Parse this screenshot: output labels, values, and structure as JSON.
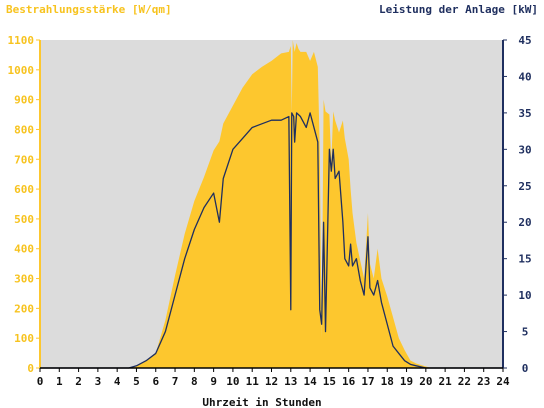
{
  "chart_data": {
    "type": "area",
    "title_left": "Bestrahlungsstärke [W/qm]",
    "title_right": "Leistung der Anlage [kW]",
    "xlabel": "Uhrzeit in Stunden",
    "grid": false,
    "xlim": [
      0,
      24
    ],
    "ylim_left": [
      0,
      1100
    ],
    "ylim_right": [
      0,
      45
    ],
    "x_ticks": [
      0,
      1,
      2,
      3,
      4,
      5,
      6,
      7,
      8,
      9,
      10,
      11,
      12,
      13,
      14,
      15,
      16,
      17,
      18,
      19,
      20,
      21,
      22,
      23,
      24
    ],
    "y_ticks_left": [
      0,
      100,
      200,
      300,
      400,
      500,
      600,
      700,
      800,
      900,
      1000,
      1100
    ],
    "y_ticks_right": [
      0,
      5,
      10,
      15,
      20,
      25,
      30,
      35,
      40,
      45
    ],
    "colors": {
      "irradiance": "#fdc72e",
      "power": "#1f2f5f",
      "plot_bg": "#dcdcdc"
    },
    "series": [
      {
        "axis": "left",
        "x": [
          0,
          4.6,
          5.0,
          5.5,
          6.0,
          6.5,
          7.0,
          7.5,
          8.0,
          8.5,
          9.0,
          9.3,
          9.5,
          10.0,
          10.5,
          11.0,
          11.5,
          12.0,
          12.5,
          12.9,
          13.0,
          13.05,
          13.1,
          13.2,
          13.3,
          13.4,
          13.5,
          13.8,
          14.0,
          14.2,
          14.4,
          14.5,
          14.6,
          14.7,
          14.8,
          15.0,
          15.1,
          15.2,
          15.3,
          15.5,
          15.7,
          15.8,
          16.0,
          16.1,
          16.2,
          16.4,
          16.6,
          16.8,
          17.0,
          17.1,
          17.3,
          17.5,
          17.7,
          18.0,
          18.3,
          18.6,
          18.9,
          19.2,
          19.5,
          20.0,
          20.3,
          20.5,
          24
        ],
        "values": [
          0,
          0,
          5,
          25,
          50,
          160,
          310,
          450,
          560,
          640,
          730,
          760,
          820,
          880,
          940,
          985,
          1010,
          1030,
          1055,
          1060,
          1080,
          850,
          1100,
          1060,
          1090,
          1070,
          1060,
          1060,
          1030,
          1060,
          1010,
          740,
          100,
          900,
          860,
          850,
          690,
          860,
          830,
          790,
          830,
          770,
          700,
          600,
          520,
          420,
          360,
          300,
          520,
          350,
          300,
          400,
          300,
          240,
          170,
          100,
          60,
          25,
          15,
          5,
          0,
          0,
          0
        ]
      },
      {
        "axis": "right",
        "x": [
          0,
          4.6,
          5.0,
          5.5,
          6.0,
          6.5,
          7.0,
          7.5,
          8.0,
          8.5,
          9.0,
          9.3,
          9.4,
          9.5,
          10.0,
          10.5,
          11.0,
          11.5,
          12.0,
          12.5,
          12.9,
          13.0,
          13.05,
          13.15,
          13.2,
          13.3,
          13.5,
          13.8,
          14.0,
          14.2,
          14.4,
          14.5,
          14.6,
          14.7,
          14.8,
          15.0,
          15.1,
          15.2,
          15.3,
          15.5,
          15.7,
          15.8,
          16.0,
          16.1,
          16.2,
          16.4,
          16.6,
          16.8,
          17.0,
          17.1,
          17.3,
          17.5,
          17.7,
          18.0,
          18.3,
          18.6,
          18.9,
          19.2,
          19.5,
          20.0,
          20.3,
          20.5,
          24
        ],
        "values": [
          0,
          0,
          0.3,
          1,
          2,
          5,
          10,
          15,
          19,
          22,
          24,
          20,
          23,
          26,
          30,
          31.5,
          33,
          33.5,
          34,
          34,
          34.5,
          8,
          35,
          34.5,
          31,
          35,
          34.5,
          33,
          35,
          33,
          31,
          8,
          6,
          20,
          5,
          30,
          27,
          30,
          26,
          27,
          20,
          15,
          14,
          17,
          14,
          15,
          12,
          10,
          18,
          11,
          10,
          12,
          9,
          6,
          3,
          2,
          1,
          0.5,
          0.3,
          0,
          0,
          0,
          0
        ]
      }
    ]
  }
}
